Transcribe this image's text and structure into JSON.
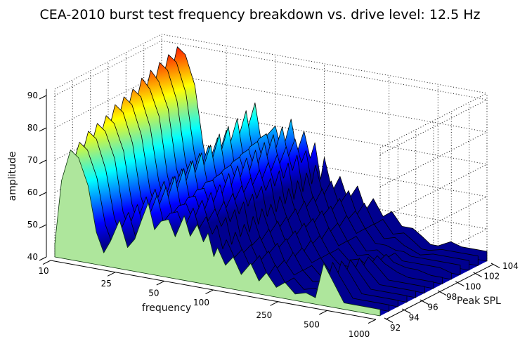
{
  "figure": {
    "title": "CEA-2010 burst test frequency breakdown vs. drive level: 12.5 Hz",
    "background": "#FFFFFF"
  },
  "chart_data": {
    "type": "area",
    "style": "3d-waterfall, jet colormap, MATLAB-like view",
    "title": "CEA-2010 burst test frequency breakdown vs. drive level: 12.5 Hz",
    "xlabel": "frequency",
    "ylabel": "Peak SPL",
    "zlabel": "amplitude",
    "x_scale": "log",
    "x_ticks": [
      10,
      25,
      50,
      100,
      250,
      500,
      1000
    ],
    "y_ticks": [
      92,
      94,
      96,
      98,
      100,
      102,
      104
    ],
    "z_ticks": [
      40,
      50,
      60,
      70,
      80,
      90
    ],
    "xlim": [
      10,
      1000
    ],
    "ylim": [
      92,
      104
    ],
    "zlim": [
      40,
      92
    ],
    "grid": true,
    "frequencies_hz": [
      10,
      11,
      12.5,
      14,
      16,
      18,
      20,
      22,
      25,
      28,
      31,
      34,
      37.5,
      41,
      45,
      50,
      55,
      62.5,
      68,
      75,
      82,
      87.5,
      95,
      100,
      112,
      125,
      140,
      160,
      180,
      200,
      230,
      260,
      300,
      350,
      400,
      450,
      500,
      600,
      700,
      850,
      1000
    ],
    "series": [
      {
        "peak_spl": 92,
        "amplitudes": [
          44,
          64,
          74,
          72,
          64,
          50,
          44,
          48,
          55,
          47,
          50,
          56,
          62,
          54,
          57,
          58,
          53,
          60,
          54,
          58,
          53,
          56,
          49,
          52,
          47,
          50,
          45,
          49,
          44,
          47,
          43,
          45,
          42,
          43,
          42,
          53,
          49,
          42,
          42,
          42,
          42
        ]
      },
      {
        "peak_spl": 93,
        "amplitudes": [
          44,
          65,
          75,
          73,
          65,
          51,
          45,
          49,
          56,
          48,
          51,
          57,
          63,
          55,
          58,
          59,
          54,
          61,
          55,
          59,
          54,
          57,
          50,
          53,
          48,
          51,
          46,
          50,
          44,
          48,
          43,
          45,
          42,
          43,
          42,
          52,
          48,
          42,
          42,
          42,
          42
        ]
      },
      {
        "peak_spl": 94,
        "amplitudes": [
          45,
          66,
          77,
          75,
          66,
          52,
          45,
          49,
          57,
          48,
          51,
          58,
          64,
          56,
          59,
          60,
          55,
          62,
          56,
          60,
          55,
          58,
          50,
          54,
          48,
          51,
          46,
          50,
          45,
          48,
          44,
          46,
          43,
          44,
          42,
          51,
          48,
          42,
          42,
          42,
          42
        ]
      },
      {
        "peak_spl": 95,
        "amplitudes": [
          45,
          67,
          78,
          76,
          68,
          52,
          46,
          50,
          58,
          49,
          52,
          59,
          66,
          56,
          60,
          61,
          55,
          63,
          56,
          61,
          55,
          59,
          51,
          55,
          49,
          52,
          47,
          51,
          45,
          49,
          44,
          46,
          43,
          44,
          42,
          50,
          47,
          42,
          42,
          42,
          42
        ]
      },
      {
        "peak_spl": 96,
        "amplitudes": [
          45,
          68,
          79,
          77,
          69,
          53,
          46,
          51,
          59,
          49,
          53,
          60,
          67,
          57,
          61,
          62,
          56,
          64,
          57,
          62,
          56,
          60,
          51,
          56,
          49,
          53,
          47,
          51,
          46,
          49,
          45,
          47,
          43,
          44,
          42,
          49,
          46,
          42,
          42,
          42,
          42
        ]
      },
      {
        "peak_spl": 97,
        "amplitudes": [
          46,
          69,
          81,
          79,
          70,
          54,
          47,
          52,
          60,
          50,
          54,
          61,
          68,
          58,
          62,
          63,
          57,
          66,
          58,
          63,
          57,
          61,
          52,
          57,
          50,
          54,
          48,
          52,
          46,
          50,
          45,
          47,
          44,
          44,
          43,
          48,
          46,
          42,
          42,
          42,
          42
        ]
      },
      {
        "peak_spl": 98,
        "amplitudes": [
          46,
          70,
          82,
          80,
          71,
          55,
          47,
          52,
          60,
          50,
          54,
          62,
          69,
          59,
          62,
          64,
          58,
          67,
          59,
          64,
          58,
          62,
          53,
          57,
          50,
          54,
          48,
          53,
          47,
          50,
          45,
          47,
          44,
          45,
          43,
          47,
          45,
          43,
          42,
          42,
          42
        ]
      },
      {
        "peak_spl": 99,
        "amplitudes": [
          46,
          71,
          83,
          81,
          72,
          56,
          48,
          53,
          61,
          51,
          55,
          63,
          70,
          60,
          63,
          65,
          59,
          68,
          60,
          65,
          59,
          63,
          53,
          58,
          51,
          55,
          49,
          53,
          47,
          51,
          46,
          48,
          44,
          45,
          43,
          46,
          44,
          43,
          43,
          42,
          42
        ]
      },
      {
        "peak_spl": 100,
        "amplitudes": [
          46,
          72,
          85,
          82,
          74,
          56,
          48,
          54,
          62,
          51,
          56,
          64,
          72,
          60,
          64,
          66,
          59,
          69,
          60,
          66,
          59,
          64,
          54,
          59,
          51,
          56,
          49,
          54,
          48,
          51,
          46,
          48,
          44,
          45,
          43,
          45,
          43,
          43,
          43,
          43,
          42
        ]
      },
      {
        "peak_spl": 101,
        "amplitudes": [
          47,
          73,
          86,
          83,
          75,
          57,
          49,
          54,
          63,
          52,
          56,
          65,
          73,
          61,
          65,
          67,
          60,
          70,
          61,
          67,
          60,
          65,
          54,
          60,
          52,
          56,
          50,
          54,
          48,
          52,
          47,
          49,
          45,
          45,
          44,
          44,
          43,
          43,
          43,
          43,
          43
        ]
      },
      {
        "peak_spl": 102,
        "amplitudes": [
          47,
          74,
          87,
          85,
          76,
          58,
          49,
          55,
          64,
          52,
          57,
          66,
          74,
          62,
          66,
          68,
          61,
          71,
          62,
          68,
          61,
          66,
          55,
          61,
          52,
          57,
          50,
          55,
          49,
          52,
          47,
          49,
          45,
          46,
          44,
          43,
          42,
          43,
          43,
          43,
          43
        ]
      },
      {
        "peak_spl": 103,
        "amplitudes": [
          47,
          75,
          88,
          86,
          77,
          59,
          50,
          56,
          65,
          53,
          58,
          67,
          75,
          63,
          67,
          69,
          62,
          72,
          63,
          69,
          62,
          66,
          56,
          62,
          53,
          58,
          51,
          56,
          49,
          53,
          47,
          49,
          45,
          46,
          44,
          42,
          42,
          43,
          43,
          43,
          43
        ]
      },
      {
        "peak_spl": 104,
        "amplitudes": [
          48,
          76,
          89,
          87,
          78,
          60,
          50,
          56,
          66,
          53,
          58,
          68,
          76,
          64,
          67,
          70,
          62,
          73,
          63,
          70,
          62,
          67,
          56,
          63,
          53,
          58,
          51,
          56,
          49,
          53,
          48,
          50,
          46,
          46,
          44,
          42,
          42,
          44,
          43,
          43,
          43
        ]
      }
    ],
    "colormap": "jet",
    "colors": {
      "front_slice": "#AEE69C",
      "front_edge": "#0A330A",
      "floor": "#0000A8",
      "edge": "#000000",
      "background": "#FFFFFF",
      "jet_stops": [
        [
          0,
          "#00008F"
        ],
        [
          0.125,
          "#0000FF"
        ],
        [
          0.375,
          "#00FFFF"
        ],
        [
          0.5,
          "#8CF08C"
        ],
        [
          0.625,
          "#FFFF00"
        ],
        [
          0.875,
          "#FF0000"
        ],
        [
          1,
          "#8B0000"
        ]
      ]
    },
    "legend": null
  }
}
